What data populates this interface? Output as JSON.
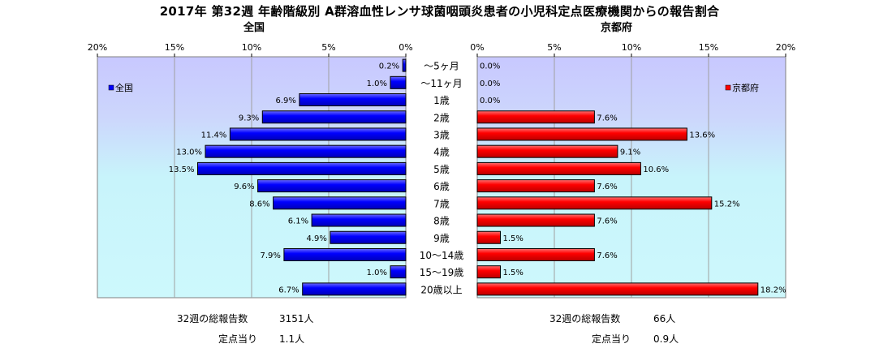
{
  "title": "2017年 第32週 年齢階級別 A群溶血性レンサ球菌咽頭炎患者の小児科定点医療機関からの報告割合",
  "colors": {
    "national": "#0000ff",
    "kyoto": "#ff0000",
    "bar_edge": "#000000"
  },
  "chart_data": [
    {
      "type": "bar",
      "orientation": "horizontal",
      "direction": "right-to-left",
      "title": "全国",
      "categories": [
        "～5ヶ月",
        "～11ヶ月",
        "1歳",
        "2歳",
        "3歳",
        "4歳",
        "5歳",
        "6歳",
        "7歳",
        "8歳",
        "9歳",
        "10～14歳",
        "15～19歳",
        "20歳以上"
      ],
      "series": [
        {
          "name": "全国",
          "values": [
            0.2,
            1.0,
            6.9,
            9.3,
            11.4,
            13.0,
            13.5,
            9.6,
            8.6,
            6.1,
            4.9,
            7.9,
            1.0,
            6.7
          ]
        }
      ],
      "value_labels": [
        "0.2%",
        "1.0%",
        "6.9%",
        "9.3%",
        "11.4%",
        "13.0%",
        "13.5%",
        "9.6%",
        "8.6%",
        "6.1%",
        "4.9%",
        "7.9%",
        "1.0%",
        "6.7%"
      ],
      "xlim": [
        0,
        20
      ],
      "ticks": [
        "20%",
        "15%",
        "10%",
        "5%",
        "0%"
      ],
      "grid": true,
      "legend": "top-left"
    },
    {
      "type": "bar",
      "orientation": "horizontal",
      "direction": "left-to-right",
      "title": "京都府",
      "categories": [
        "～5ヶ月",
        "～11ヶ月",
        "1歳",
        "2歳",
        "3歳",
        "4歳",
        "5歳",
        "6歳",
        "7歳",
        "8歳",
        "9歳",
        "10～14歳",
        "15～19歳",
        "20歳以上"
      ],
      "series": [
        {
          "name": "京都府",
          "values": [
            0.0,
            0.0,
            0.0,
            7.6,
            13.6,
            9.1,
            10.6,
            7.6,
            15.2,
            7.6,
            1.5,
            7.6,
            1.5,
            18.2
          ]
        }
      ],
      "value_labels": [
        "0.0%",
        "0.0%",
        "0.0%",
        "7.6%",
        "13.6%",
        "9.1%",
        "10.6%",
        "7.6%",
        "15.2%",
        "7.6%",
        "1.5%",
        "7.6%",
        "1.5%",
        "18.2%"
      ],
      "xlim": [
        0,
        20
      ],
      "ticks": [
        "0%",
        "5%",
        "10%",
        "15%",
        "20%"
      ],
      "grid": true,
      "legend": "top-right"
    }
  ],
  "footer": {
    "national": {
      "total_label": "32週の総報告数",
      "total_value": "3151人",
      "per_site_label": "定点当り",
      "per_site_value": "1.1人"
    },
    "kyoto": {
      "total_label": "32週の総報告数",
      "total_value": "66人",
      "per_site_label": "定点当り",
      "per_site_value": "0.9人"
    }
  }
}
